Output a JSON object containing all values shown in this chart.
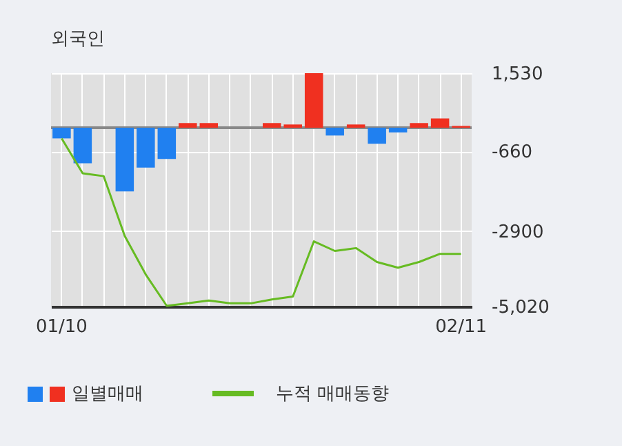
{
  "chart_data": {
    "type": "bar",
    "title": "외국인",
    "categories": [
      "01/10",
      null,
      null,
      null,
      null,
      null,
      null,
      null,
      null,
      null,
      null,
      null,
      null,
      null,
      null,
      null,
      null,
      null,
      null,
      "02/11"
    ],
    "series": [
      {
        "name": "일별매매",
        "colors": [
          "#2080f0",
          "#2080f0",
          "#2080f0",
          "#2080f0",
          "#2080f0",
          "#2080f0",
          "#f03020",
          "#f03020",
          "#f03020",
          "#f03020",
          "#f03020",
          "#f03020",
          "#f03020",
          "#2080f0",
          "#f03020",
          "#2080f0",
          "#2080f0",
          "#f03020",
          "#f03020",
          "#f03020"
        ],
        "values": [
          -300,
          -1000,
          0,
          -1790,
          -1120,
          -880,
          130,
          130,
          0,
          0,
          130,
          90,
          1530,
          -220,
          90,
          -450,
          -130,
          130,
          260,
          50
        ]
      },
      {
        "name": "누적 매매동향",
        "type": "line",
        "color": "#66bb22",
        "values": [
          -300,
          -1280,
          -1360,
          -3040,
          -4120,
          -5000,
          -4930,
          -4850,
          -4930,
          -4930,
          -4820,
          -4740,
          -3190,
          -3460,
          -3380,
          -3770,
          -3930,
          -3770,
          -3540,
          -3540
        ]
      }
    ],
    "ylim": [
      -5020,
      1530
    ],
    "yticks": [
      {
        "value": 1530,
        "label": "1,530"
      },
      -660,
      -2900,
      {
        "value": -5020,
        "label": "-5,020"
      }
    ],
    "ref_lines": [
      {
        "axis": "y",
        "value": 0,
        "color": "#888888"
      }
    ],
    "grid": true,
    "legend": "bottom"
  }
}
